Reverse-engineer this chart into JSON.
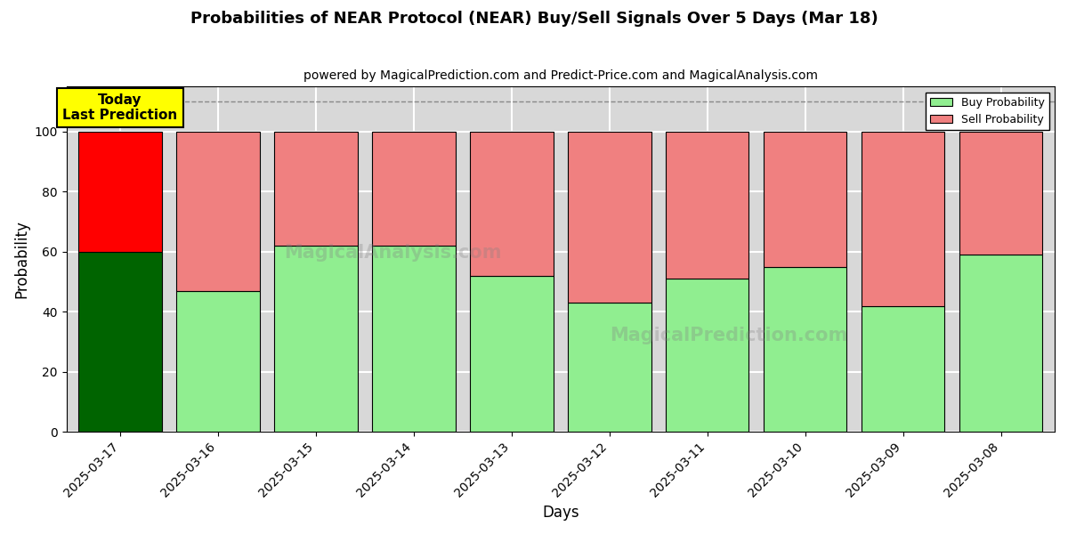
{
  "title": "Probabilities of NEAR Protocol (NEAR) Buy/Sell Signals Over 5 Days (Mar 18)",
  "subtitle": "powered by MagicalPrediction.com and Predict-Price.com and MagicalAnalysis.com",
  "xlabel": "Days",
  "ylabel": "Probability",
  "dates": [
    "2025-03-17",
    "2025-03-16",
    "2025-03-15",
    "2025-03-14",
    "2025-03-13",
    "2025-03-12",
    "2025-03-11",
    "2025-03-10",
    "2025-03-09",
    "2025-03-08"
  ],
  "buy_values": [
    60,
    47,
    62,
    62,
    52,
    43,
    51,
    55,
    42,
    59
  ],
  "sell_values": [
    40,
    53,
    38,
    38,
    48,
    57,
    49,
    45,
    58,
    41
  ],
  "today_buy_color": "#006400",
  "today_sell_color": "#FF0000",
  "buy_color": "#90EE90",
  "sell_color": "#F08080",
  "bar_edge_color": "#000000",
  "today_annotation_bg": "#FFFF00",
  "today_annotation_text": "Today\nLast Prediction",
  "legend_buy_label": "Buy Probability",
  "legend_sell_label": "Sell Probability",
  "ylim": [
    0,
    115
  ],
  "dashed_line_y": 110,
  "background_color": "#ffffff",
  "plot_bg_color": "#d8d8d8",
  "grid_color": "#ffffff"
}
